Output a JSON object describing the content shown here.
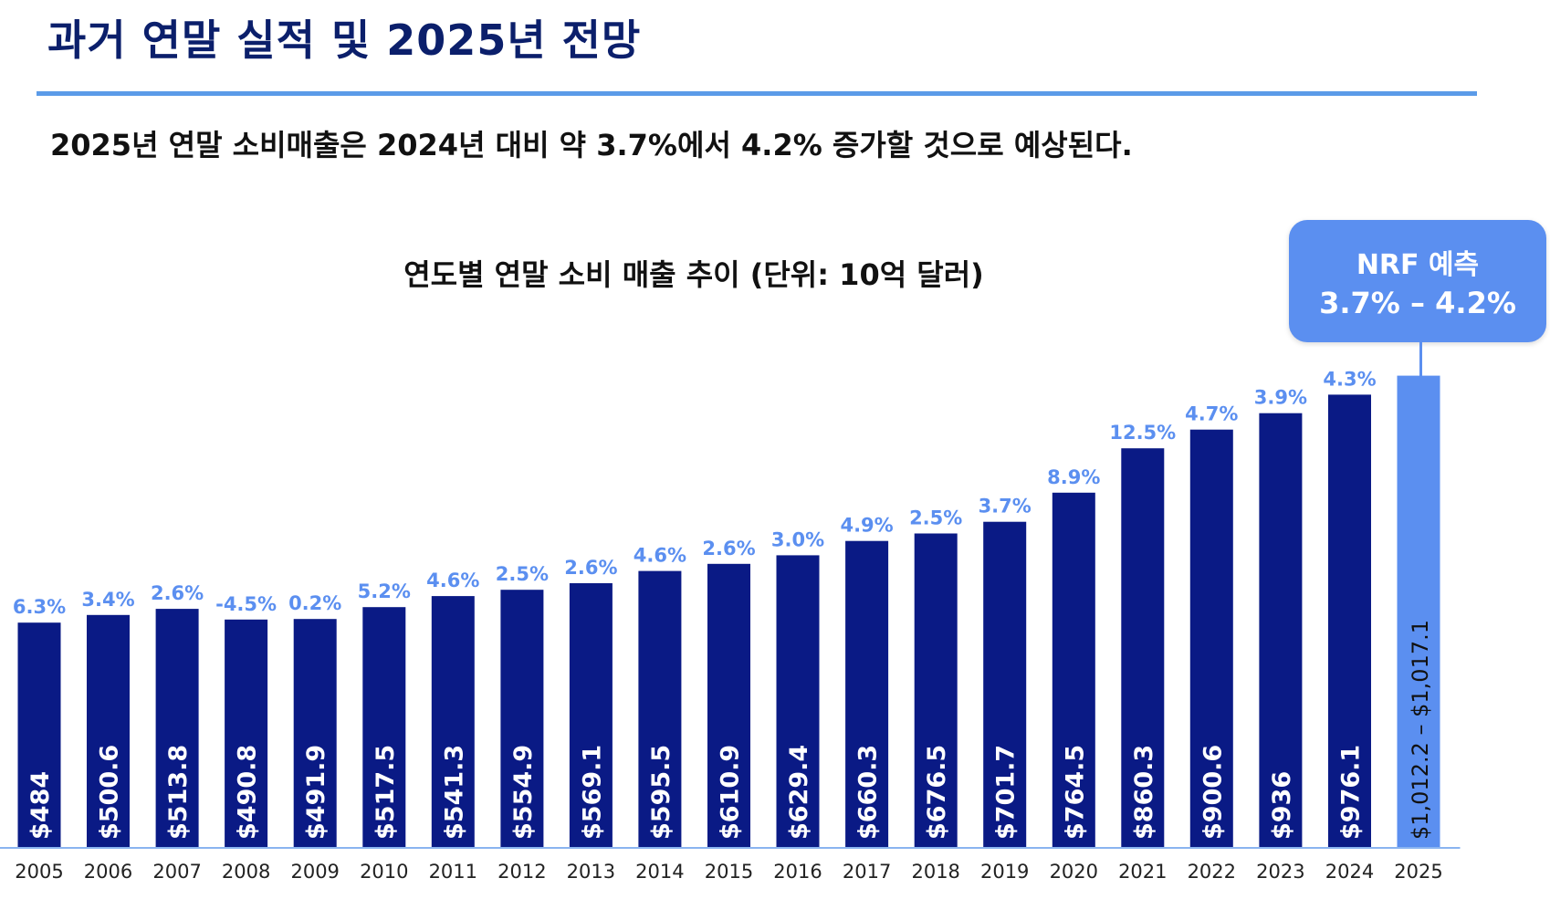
{
  "header": {
    "title": "과거 연말 실적 및 2025년 전망",
    "subtitle": "2025년 연말 소비매출은 2024년 대비 약 3.7%에서 4.2% 증가할 것으로 예상된다."
  },
  "callout": {
    "line1": "NRF 예측",
    "line2": "3.7% – 4.2%"
  },
  "colors": {
    "actual_bar": "#0a1a85",
    "forecast_bar": "#5b8ff0",
    "growth_label": "#5b8ff0",
    "axis": "#8ab4f0"
  },
  "chart_data": {
    "type": "bar",
    "title": "연도별 연말 소비 매출 추이 (단위: 10억 달러)",
    "unit": "10억 달러",
    "xlabel": "",
    "ylabel": "",
    "categories": [
      "2005",
      "2006",
      "2007",
      "2008",
      "2009",
      "2010",
      "2011",
      "2012",
      "2013",
      "2014",
      "2015",
      "2016",
      "2017",
      "2018",
      "2019",
      "2020",
      "2021",
      "2022",
      "2023",
      "2024",
      "2025"
    ],
    "values": [
      484,
      500.6,
      513.8,
      490.8,
      491.9,
      517.5,
      541.3,
      554.9,
      569.1,
      595.5,
      610.9,
      629.4,
      660.3,
      676.5,
      701.7,
      764.5,
      860.3,
      900.6,
      936,
      976.1,
      1017.1
    ],
    "value_labels": [
      "$484",
      "$500.6",
      "$513.8",
      "$490.8",
      "$491.9",
      "$517.5",
      "$541.3",
      "$554.9",
      "$569.1",
      "$595.5",
      "$610.9",
      "$629.4",
      "$660.3",
      "$676.5",
      "$701.7",
      "$764.5",
      "$860.3",
      "$900.6",
      "$936",
      "$976.1",
      "$1,012.2 – $1,017.1"
    ],
    "growth_labels": [
      "6.3%",
      "3.4%",
      "2.6%",
      "-4.5%",
      "0.2%",
      "5.2%",
      "4.6%",
      "2.5%",
      "2.6%",
      "4.6%",
      "2.6%",
      "3.0%",
      "4.9%",
      "2.5%",
      "3.7%",
      "8.9%",
      "12.5%",
      "4.7%",
      "3.9%",
      "4.3%",
      ""
    ],
    "forecast": [
      false,
      false,
      false,
      false,
      false,
      false,
      false,
      false,
      false,
      false,
      false,
      false,
      false,
      false,
      false,
      false,
      false,
      false,
      false,
      false,
      true
    ],
    "ylim": [
      0,
      1030
    ],
    "grid": false,
    "legend": "none"
  }
}
